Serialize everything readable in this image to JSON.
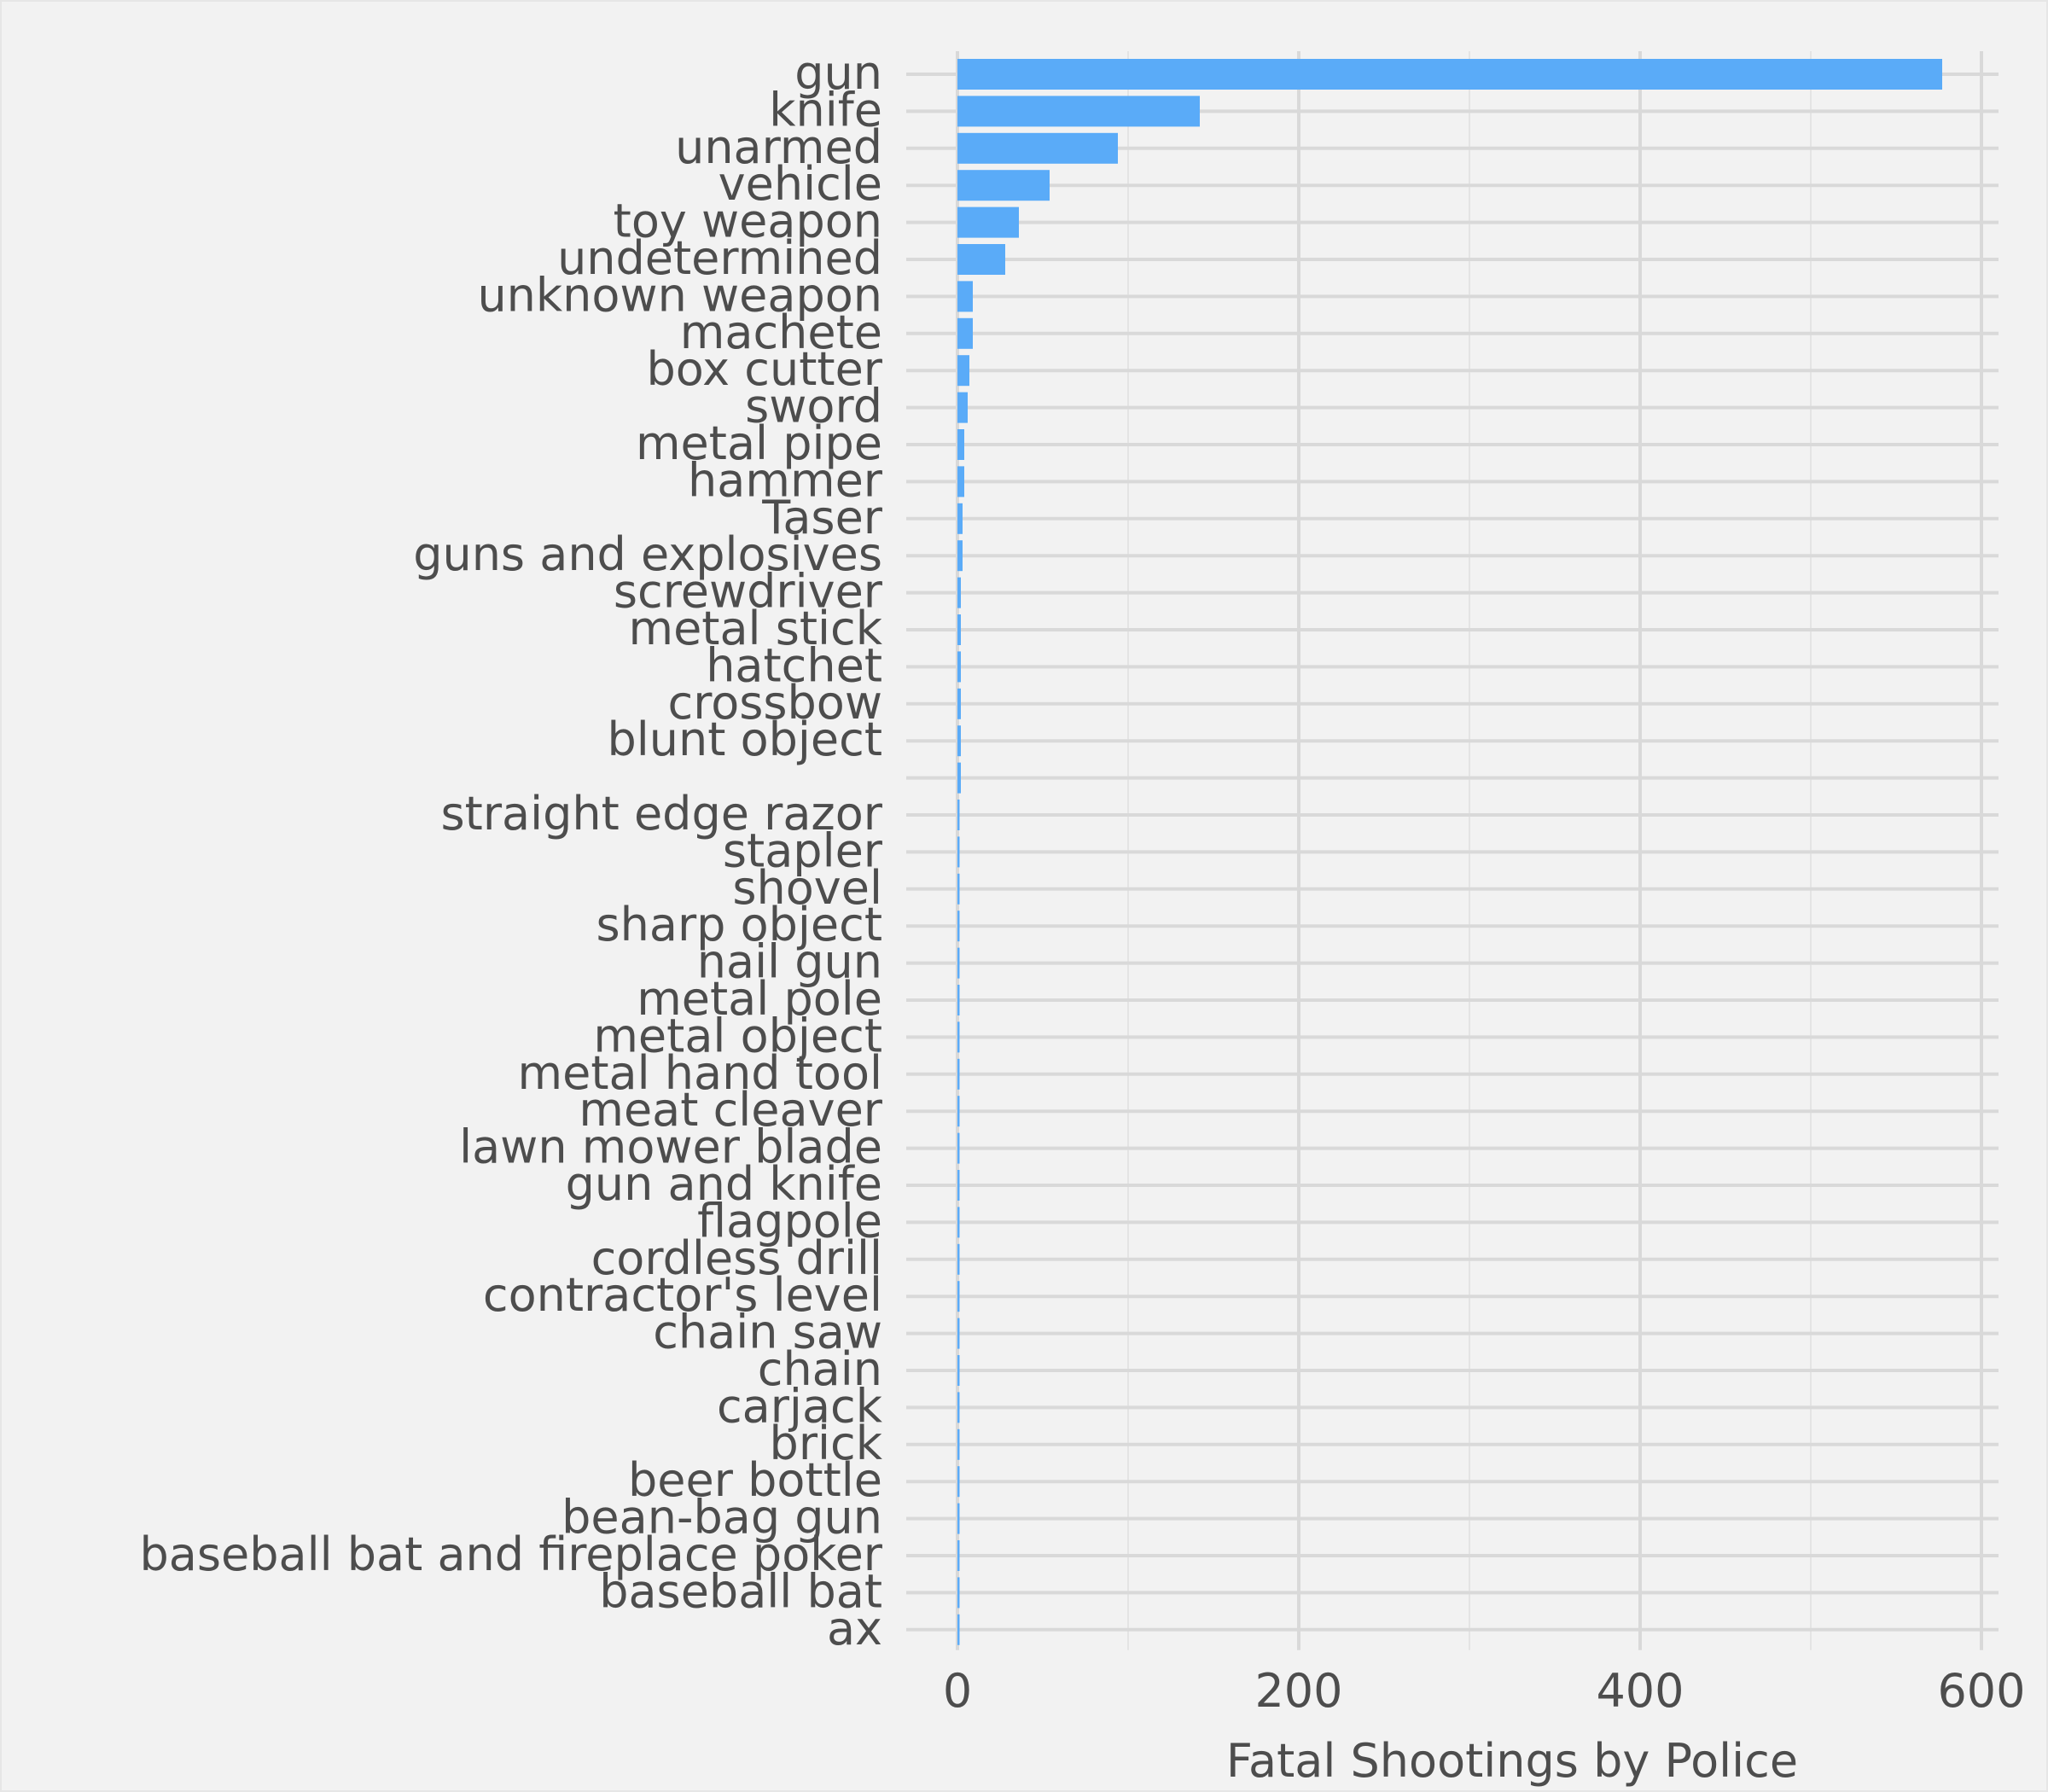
{
  "chart_data": {
    "type": "bar",
    "orientation": "horizontal",
    "categories": [
      "gun",
      "knife",
      "unarmed",
      "vehicle",
      "toy weapon",
      "undetermined",
      "unknown weapon",
      "machete",
      "box cutter",
      "sword",
      "metal pipe",
      "hammer",
      "Taser",
      "guns and explosives",
      "screwdriver",
      "metal stick",
      "hatchet",
      "crossbow",
      "blunt object",
      "",
      "straight edge razor",
      "stapler",
      "shovel",
      "sharp object",
      "nail gun",
      "metal pole",
      "metal object",
      "metal hand tool",
      "meat cleaver",
      "lawn mower blade",
      "gun and knife",
      "flagpole",
      "cordless drill",
      "contractor's level",
      "chain saw",
      "chain",
      "carjack",
      "brick",
      "beer bottle",
      "bean-bag gun",
      "baseball bat and fireplace poker",
      "baseball bat",
      "ax"
    ],
    "values": [
      577,
      142,
      94,
      54,
      36,
      28,
      9,
      9,
      7,
      6,
      4,
      4,
      3,
      3,
      2,
      2,
      2,
      2,
      2,
      2,
      1,
      1,
      1,
      1,
      1,
      1,
      1,
      1,
      1,
      1,
      1,
      1,
      1,
      1,
      1,
      1,
      1,
      1,
      1,
      1,
      1,
      1,
      1
    ],
    "xlim": [
      -30,
      610
    ],
    "xticks": [
      0,
      200,
      400,
      600
    ],
    "xlabel": "Fatal Shootings by Police",
    "ylabel": "",
    "title": "",
    "bar_color": "#5aabf8",
    "grid": true,
    "background_color": "#f2f2f2",
    "grid_color": "#d9d9d9"
  }
}
